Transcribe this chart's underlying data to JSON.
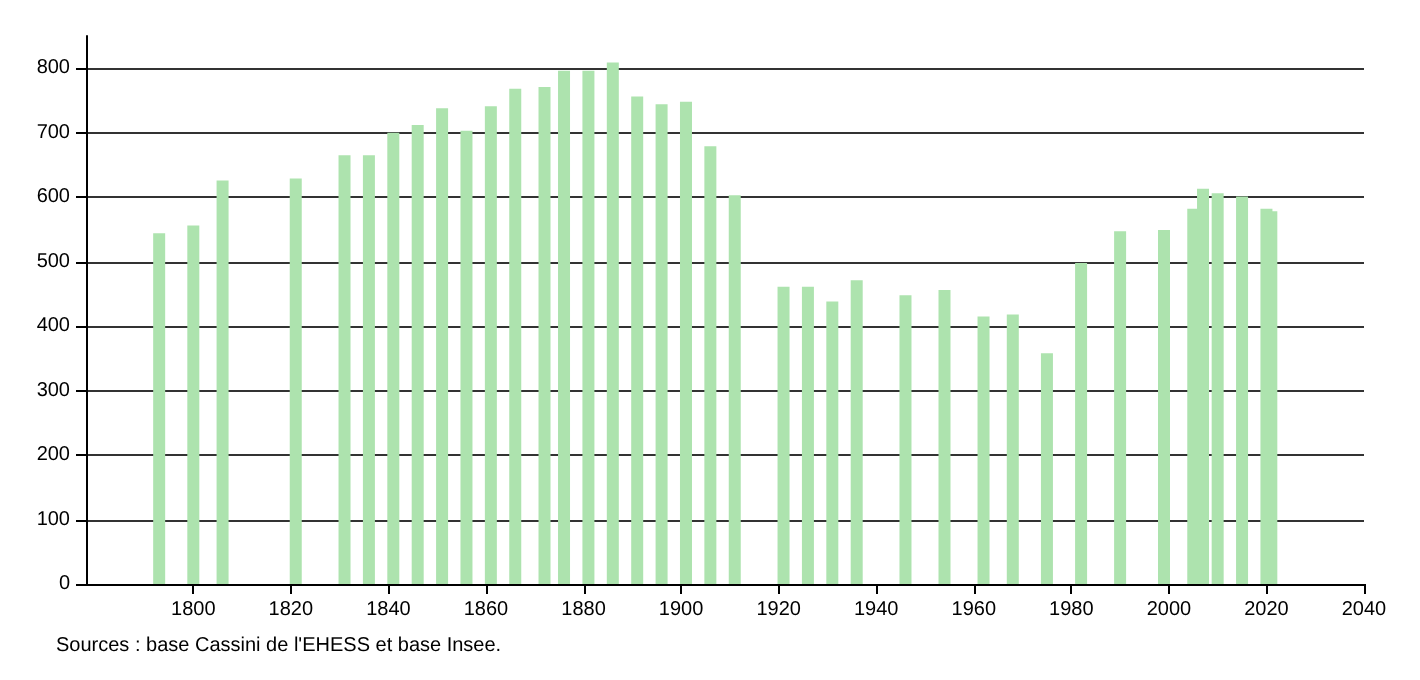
{
  "chart_data": {
    "type": "bar",
    "x": [
      1793,
      1800,
      1806,
      1821,
      1831,
      1836,
      1841,
      1846,
      1851,
      1856,
      1861,
      1866,
      1872,
      1876,
      1881,
      1886,
      1891,
      1896,
      1901,
      1906,
      1911,
      1921,
      1926,
      1931,
      1936,
      1946,
      1954,
      1962,
      1968,
      1975,
      1982,
      1990,
      1999,
      2005,
      2007,
      2010,
      2015,
      2020,
      2021
    ],
    "series": [
      {
        "color": "#ade3ae",
        "values": [
          544,
          556,
          626,
          629,
          665,
          665,
          700,
          712,
          738,
          703,
          741,
          768,
          771,
          796,
          796,
          809,
          756,
          744,
          748,
          679,
          603,
          461,
          461,
          438,
          471,
          448,
          456,
          415,
          418,
          358,
          498,
          547,
          549,
          582,
          613,
          606,
          601,
          582,
          578
        ]
      }
    ],
    "xlim": [
      1778,
      2040
    ],
    "xticks": [
      1800,
      1820,
      1840,
      1860,
      1880,
      1900,
      1920,
      1940,
      1960,
      1980,
      2000,
      2020,
      2040
    ],
    "ylim": [
      0,
      850
    ],
    "yticks": [
      0,
      100,
      200,
      300,
      400,
      500,
      600,
      700,
      800
    ],
    "grid": "y",
    "annotations": [
      "Sources : base Cassini de l'EHESS et base Insee."
    ]
  }
}
